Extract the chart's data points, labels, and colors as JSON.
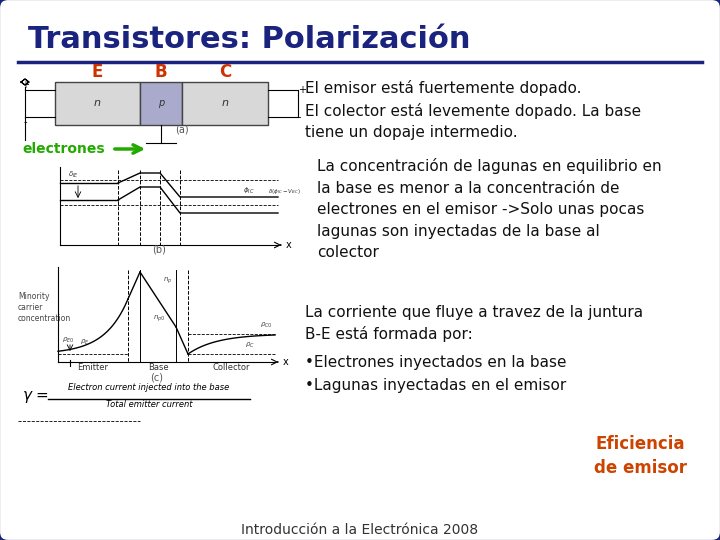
{
  "bg_color": "#e8e8e8",
  "border_color": "#1a237e",
  "title": "Transistores: Polarización",
  "title_color": "#1a237e",
  "title_fontsize": 22,
  "separator_color": "#1a237e",
  "footer": "Introducción a la Electrónica 2008",
  "footer_color": "#333333",
  "footer_fontsize": 10,
  "labels_EBC_color": "#cc3300",
  "electrones_color": "#22aa00",
  "text_black": "#111111",
  "text_orange": "#cc4400",
  "text1": "El emisor está fuertemente dopado.",
  "text2": "El colector está levemente dopado. La base\ntiene un dopaje intermedio.",
  "text3": "La concentración de lagunas en equilibrio en\nla base es menor a la concentración de\nelectrones en el emisor ->Solo unas pocas\nlagunas son inyectadas de la base al\ncolector",
  "text4": "La corriente que fluye a travez de la juntura\nB-E está formada por:",
  "text5": "•Electrones inyectados en la base",
  "text6": "•Lagunas inyectadas en el emisor",
  "eficiencia": "Eficiencia\nde emisor",
  "eficiencia_color": "#cc4400",
  "body_fontsize": 11,
  "panel_split": 295
}
